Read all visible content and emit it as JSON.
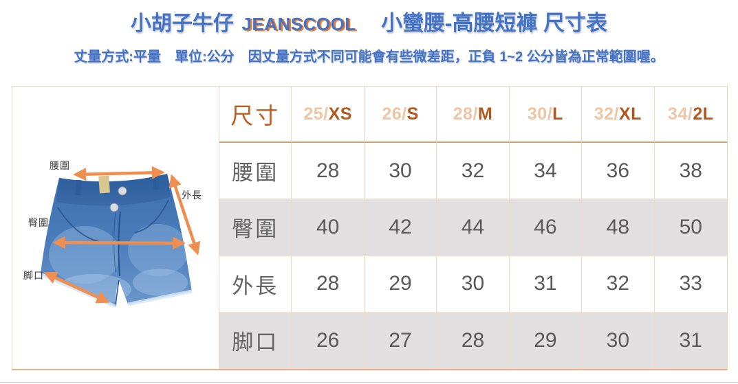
{
  "header": {
    "brand": "小胡子牛仔",
    "logo": "JEANSCOOL",
    "product_title": "小蠻腰-高腰短褲 尺寸表",
    "note": "丈量方式:平量　單位:公分　因丈量方式不同可能會有些微差距，正負 1~2 公分皆為正常範圍喔。"
  },
  "diagram": {
    "waist_label": "腰圍",
    "hip_label": "臀圍",
    "outseam_label": "外長",
    "hem_label": "脚口"
  },
  "table": {
    "header_label": "尺寸",
    "sizes": [
      {
        "prefix": "25/",
        "code": "XS"
      },
      {
        "prefix": "26/",
        "code": "S"
      },
      {
        "prefix": "28/",
        "code": "M"
      },
      {
        "prefix": "30/",
        "code": "L"
      },
      {
        "prefix": "32/",
        "code": "XL"
      },
      {
        "prefix": "34/",
        "code": "2L"
      }
    ],
    "rows": [
      {
        "label": "腰圍",
        "shaded": false,
        "values": [
          "28",
          "30",
          "32",
          "34",
          "36",
          "38"
        ]
      },
      {
        "label": "臀圍",
        "shaded": true,
        "values": [
          "40",
          "42",
          "44",
          "46",
          "48",
          "50"
        ]
      },
      {
        "label": "外長",
        "shaded": false,
        "values": [
          "28",
          "29",
          "30",
          "31",
          "32",
          "33"
        ]
      },
      {
        "label": "脚口",
        "shaded": true,
        "values": [
          "26",
          "27",
          "28",
          "29",
          "30",
          "31"
        ]
      }
    ]
  },
  "colors": {
    "title_blue": "#4472C4",
    "logo_shadow_orange": "#ED7D31",
    "arrow_orange": "#EF8E4F",
    "size_code_orange": "#B4571E",
    "size_prefix_peach": "#EEC6A4",
    "table_label_orange": "#BF5C1E",
    "shaded_row_gray": "#E2DFE1",
    "grid_line_peach": "#F5D8BA",
    "header_rule_tan": "#C9A26D",
    "value_text_gray": "#595959",
    "denim_blue": "#3E70B2"
  }
}
